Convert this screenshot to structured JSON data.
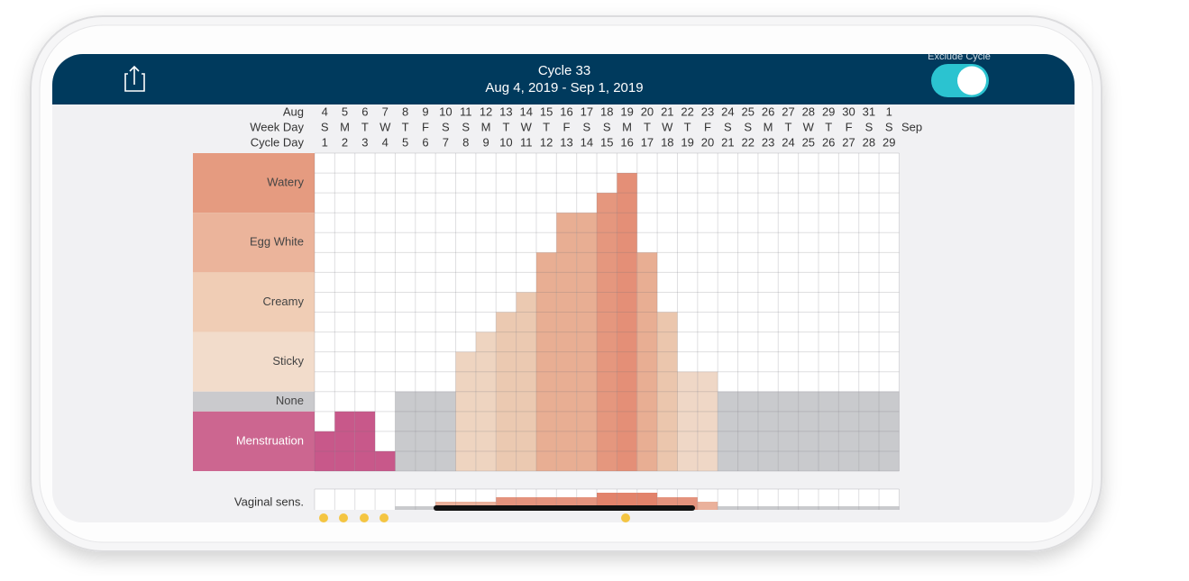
{
  "header": {
    "title": "Cycle 33",
    "date_range": "Aug 4, 2019 - Sep 1, 2019",
    "toggle_label": "Exclude Cycle",
    "toggle_on": true
  },
  "table": {
    "row_headers": [
      "Aug",
      "Week Day",
      "Cycle Day"
    ],
    "next_month": "Sep",
    "dates": [
      4,
      5,
      6,
      7,
      8,
      9,
      10,
      11,
      12,
      13,
      14,
      15,
      16,
      17,
      18,
      19,
      20,
      21,
      22,
      23,
      24,
      25,
      26,
      27,
      28,
      29,
      30,
      31,
      1
    ],
    "weekdays": [
      "S",
      "M",
      "T",
      "W",
      "T",
      "F",
      "S",
      "S",
      "M",
      "T",
      "W",
      "T",
      "F",
      "S",
      "S",
      "M",
      "T",
      "W",
      "T",
      "F",
      "S",
      "S",
      "M",
      "T",
      "W",
      "T",
      "F",
      "S",
      "S"
    ],
    "cycle_days": [
      1,
      2,
      3,
      4,
      5,
      6,
      7,
      8,
      9,
      10,
      11,
      12,
      13,
      14,
      15,
      16,
      17,
      18,
      19,
      20,
      21,
      22,
      23,
      24,
      25,
      26,
      27,
      28,
      29
    ],
    "categories": [
      {
        "label": "Watery",
        "rows": 3,
        "color": "#e59b80"
      },
      {
        "label": "Egg White",
        "rows": 3,
        "color": "#ebb49b"
      },
      {
        "label": "Creamy",
        "rows": 3,
        "color": "#f0cdb5"
      },
      {
        "label": "Sticky",
        "rows": 3,
        "color": "#f2dccb"
      },
      {
        "label": "None",
        "rows": 1,
        "color": "#cacacd"
      },
      {
        "label": "Menstruation",
        "rows": 3,
        "color": "#cc6690"
      }
    ],
    "levels": [
      2,
      3,
      3,
      1,
      4,
      4,
      4,
      6,
      7,
      8,
      9,
      11,
      13,
      13,
      14,
      15,
      11,
      8,
      5,
      5,
      4,
      4,
      4,
      4,
      4,
      4,
      4,
      4,
      4
    ],
    "colors": [
      "#c8588a",
      "#c8588a",
      "#c8588a",
      "#c8588a",
      "#c9cacd",
      "#c9cacd",
      "#c9cacd",
      "#eed4c0",
      "#eed4c0",
      "#ebc9b1",
      "#ebc9b1",
      "#e8ae93",
      "#e8ae93",
      "#e8ae93",
      "#e5977e",
      "#e48f77",
      "#e8ae93",
      "#ebc6ad",
      "#efd7c6",
      "#efd7c6",
      "#c9cacd",
      "#c9cacd",
      "#c9cacd",
      "#c9cacd",
      "#c9cacd",
      "#c9cacd",
      "#c9cacd",
      "#c9cacd",
      "#c9cacd"
    ],
    "sensation_label": "Vaginal sens.",
    "sensation": [
      null,
      null,
      null,
      null,
      0,
      0,
      1,
      1,
      1,
      2,
      2,
      2,
      2,
      2,
      3,
      3,
      3,
      2,
      2,
      1,
      0,
      0,
      0,
      0,
      0,
      0,
      0,
      0,
      0
    ],
    "sensation_colors": [
      "#c9cacd",
      "#eab19b",
      "#e4937d",
      "#e2836b"
    ]
  }
}
